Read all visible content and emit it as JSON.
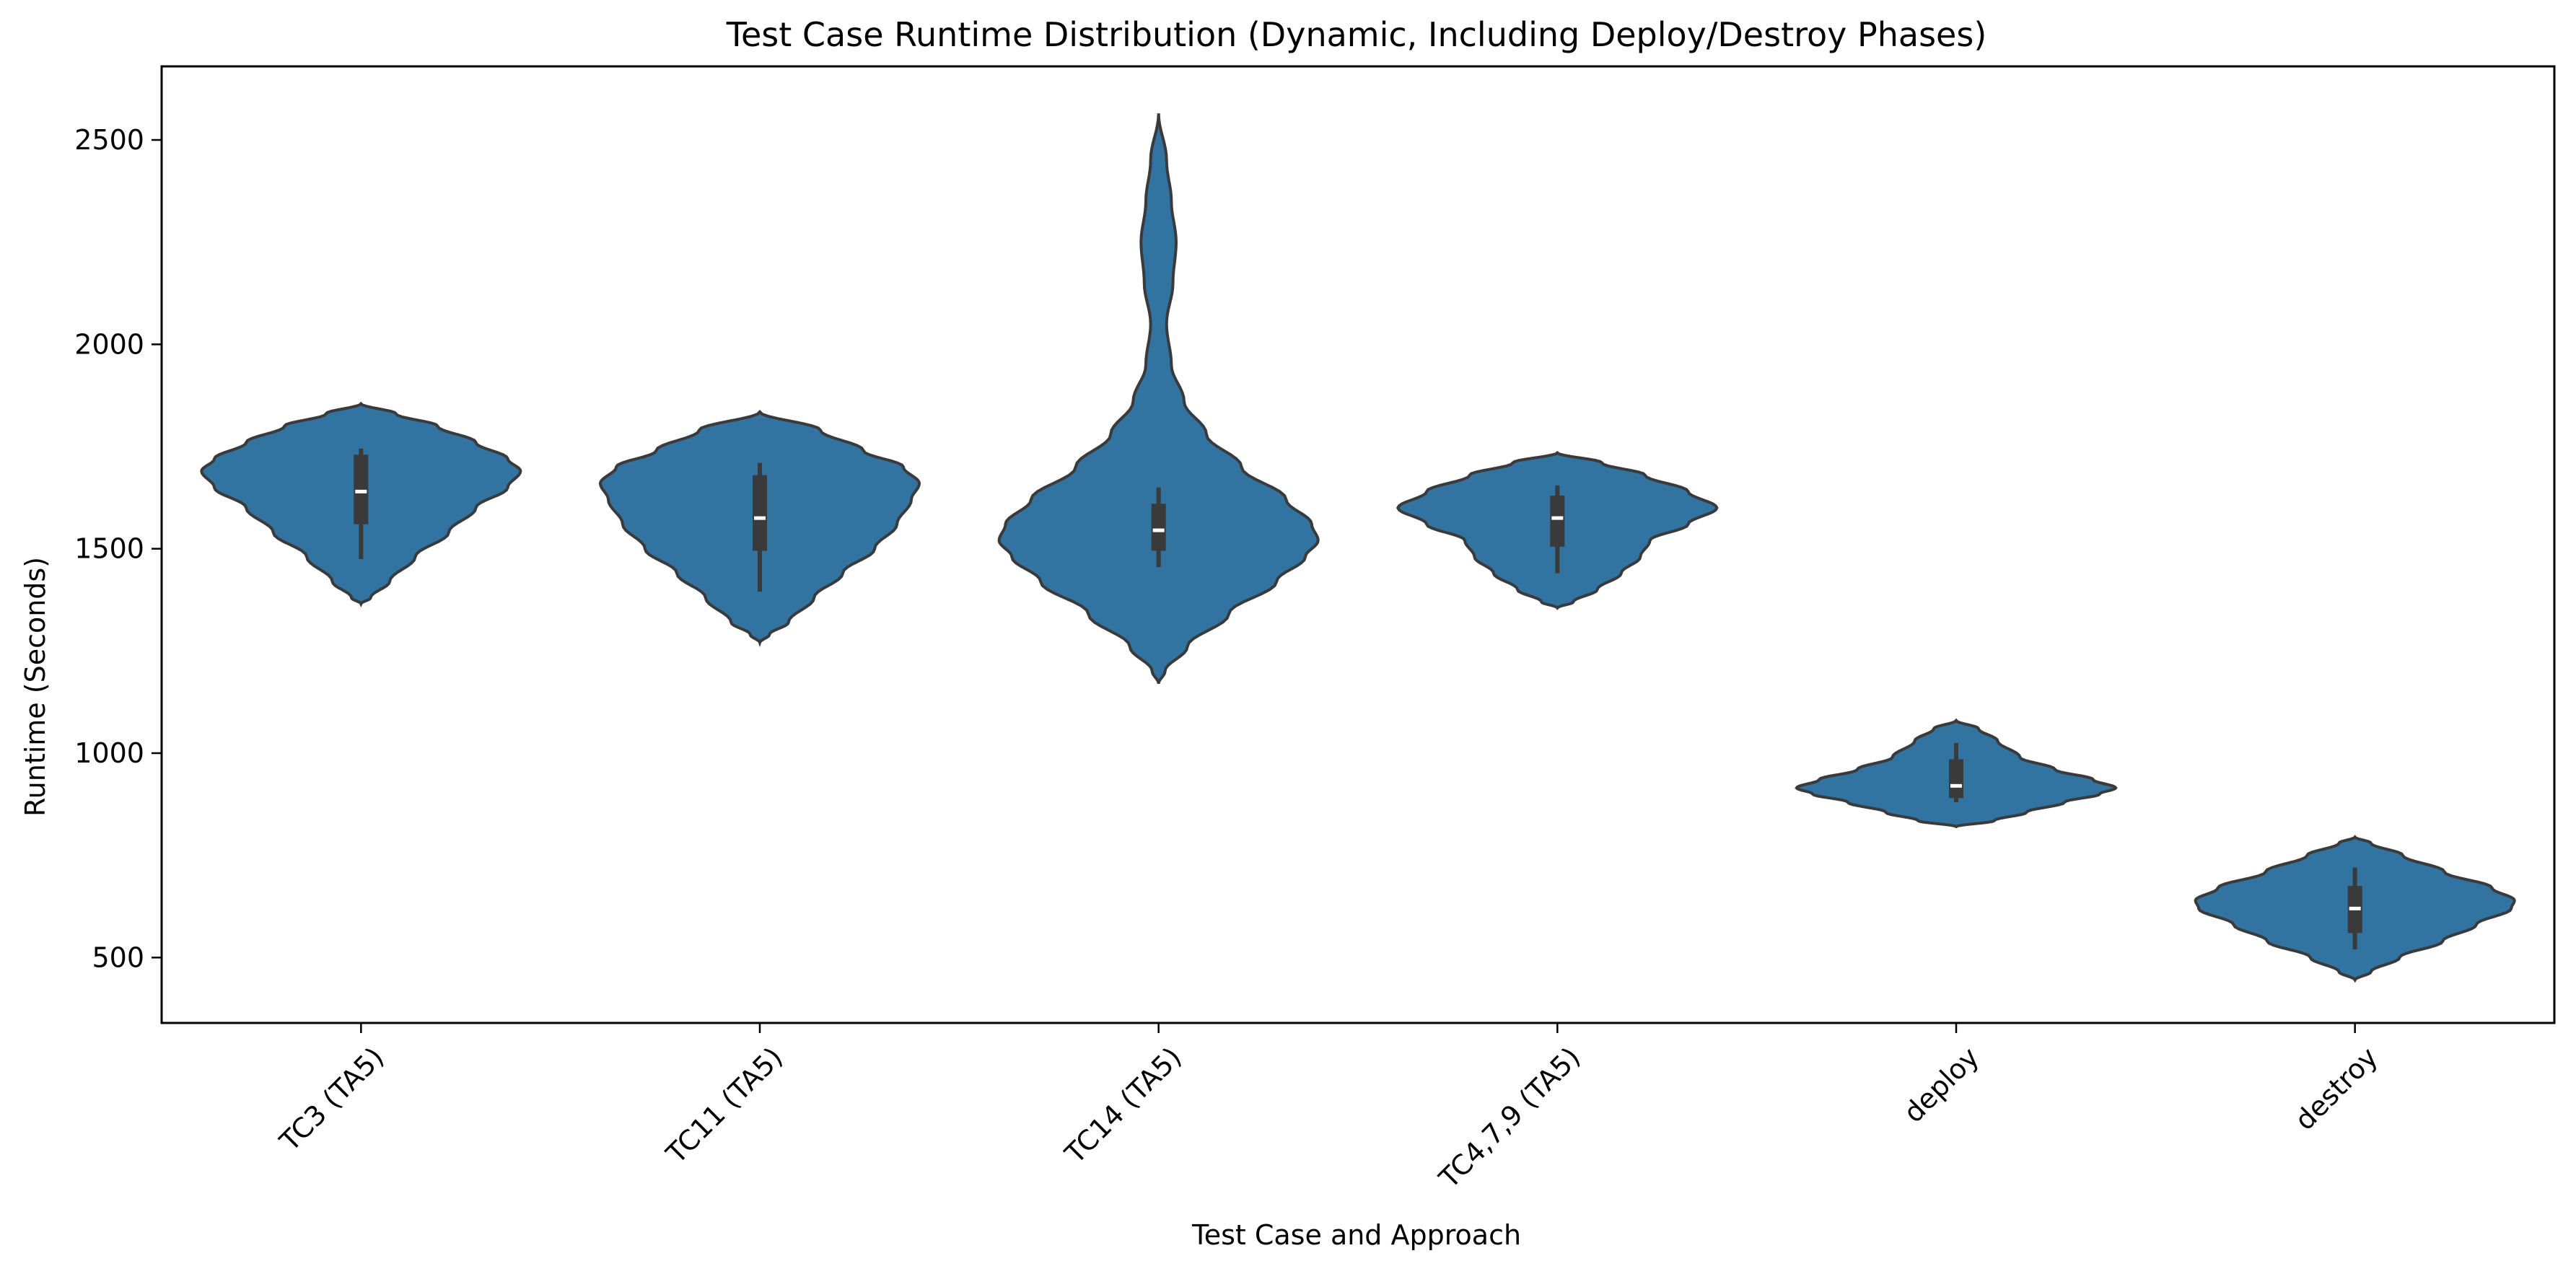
{
  "chart_data": {
    "type": "violin",
    "title": "Test Case Runtime Distribution (Dynamic, Including Deploy/Destroy Phases)",
    "xlabel": "Test Case and Approach",
    "ylabel": "Runtime (Seconds)",
    "ylim": [
      340,
      2680
    ],
    "yticks": [
      500,
      1000,
      1500,
      2000,
      2500
    ],
    "categories": [
      "TC3 (TA5)",
      "TC11 (TA5)",
      "TC14 (TA5)",
      "TC4,7,9 (TA5)",
      "deploy",
      "destroy"
    ],
    "fill_color": "#3274a1",
    "edge_color": "#3a3a3a",
    "violins": [
      {
        "name": "TC3 (TA5)",
        "range": [
          1365,
          1855
        ],
        "whisker": [
          1475,
          1745
        ],
        "q1": 1560,
        "median": 1640,
        "q3": 1730,
        "width_profile": [
          [
            1365,
            0
          ],
          [
            1380,
            0.06
          ],
          [
            1420,
            0.18
          ],
          [
            1480,
            0.34
          ],
          [
            1540,
            0.55
          ],
          [
            1600,
            0.72
          ],
          [
            1650,
            0.92
          ],
          [
            1690,
            1.0
          ],
          [
            1720,
            0.92
          ],
          [
            1760,
            0.72
          ],
          [
            1800,
            0.48
          ],
          [
            1830,
            0.22
          ],
          [
            1855,
            0
          ]
        ]
      },
      {
        "name": "TC11 (TA5)",
        "range": [
          1270,
          1835
        ],
        "whisker": [
          1395,
          1710
        ],
        "q1": 1495,
        "median": 1575,
        "q3": 1680,
        "width_profile": [
          [
            1270,
            0
          ],
          [
            1290,
            0.06
          ],
          [
            1320,
            0.18
          ],
          [
            1380,
            0.34
          ],
          [
            1440,
            0.52
          ],
          [
            1500,
            0.72
          ],
          [
            1560,
            0.86
          ],
          [
            1620,
            0.95
          ],
          [
            1660,
            1.0
          ],
          [
            1700,
            0.9
          ],
          [
            1740,
            0.65
          ],
          [
            1790,
            0.38
          ],
          [
            1835,
            0
          ]
        ]
      },
      {
        "name": "TC14 (TA5)",
        "range": [
          1170,
          2565
        ],
        "whisker": [
          1455,
          1650
        ],
        "q1": 1495,
        "median": 1545,
        "q3": 1610,
        "width_profile": [
          [
            1170,
            0
          ],
          [
            1200,
            0.04
          ],
          [
            1260,
            0.18
          ],
          [
            1340,
            0.44
          ],
          [
            1420,
            0.74
          ],
          [
            1480,
            0.92
          ],
          [
            1520,
            1.0
          ],
          [
            1560,
            0.96
          ],
          [
            1620,
            0.8
          ],
          [
            1700,
            0.52
          ],
          [
            1780,
            0.3
          ],
          [
            1860,
            0.16
          ],
          [
            1950,
            0.08
          ],
          [
            2050,
            0.05
          ],
          [
            2150,
            0.09
          ],
          [
            2250,
            0.11
          ],
          [
            2350,
            0.08
          ],
          [
            2450,
            0.05
          ],
          [
            2565,
            0
          ]
        ]
      },
      {
        "name": "TC4,7,9 (TA5)",
        "range": [
          1355,
          1735
        ],
        "whisker": [
          1440,
          1655
        ],
        "q1": 1505,
        "median": 1575,
        "q3": 1630,
        "width_profile": [
          [
            1355,
            0
          ],
          [
            1370,
            0.1
          ],
          [
            1400,
            0.25
          ],
          [
            1440,
            0.4
          ],
          [
            1480,
            0.52
          ],
          [
            1520,
            0.58
          ],
          [
            1560,
            0.82
          ],
          [
            1600,
            1.0
          ],
          [
            1640,
            0.82
          ],
          [
            1680,
            0.55
          ],
          [
            1710,
            0.28
          ],
          [
            1735,
            0
          ]
        ]
      },
      {
        "name": "deploy",
        "range": [
          820,
          1080
        ],
        "whisker": [
          880,
          1025
        ],
        "q1": 890,
        "median": 920,
        "q3": 985,
        "width_profile": [
          [
            820,
            0
          ],
          [
            835,
            0.24
          ],
          [
            855,
            0.44
          ],
          [
            880,
            0.68
          ],
          [
            900,
            0.9
          ],
          [
            915,
            1.0
          ],
          [
            935,
            0.86
          ],
          [
            960,
            0.62
          ],
          [
            990,
            0.4
          ],
          [
            1030,
            0.26
          ],
          [
            1060,
            0.14
          ],
          [
            1080,
            0
          ]
        ]
      },
      {
        "name": "destroy",
        "range": [
          445,
          795
        ],
        "whisker": [
          520,
          720
        ],
        "q1": 560,
        "median": 620,
        "q3": 675,
        "width_profile": [
          [
            445,
            0
          ],
          [
            465,
            0.1
          ],
          [
            500,
            0.28
          ],
          [
            540,
            0.55
          ],
          [
            580,
            0.76
          ],
          [
            620,
            0.98
          ],
          [
            640,
            1.0
          ],
          [
            670,
            0.86
          ],
          [
            710,
            0.56
          ],
          [
            750,
            0.3
          ],
          [
            780,
            0.1
          ],
          [
            795,
            0
          ]
        ]
      }
    ]
  }
}
